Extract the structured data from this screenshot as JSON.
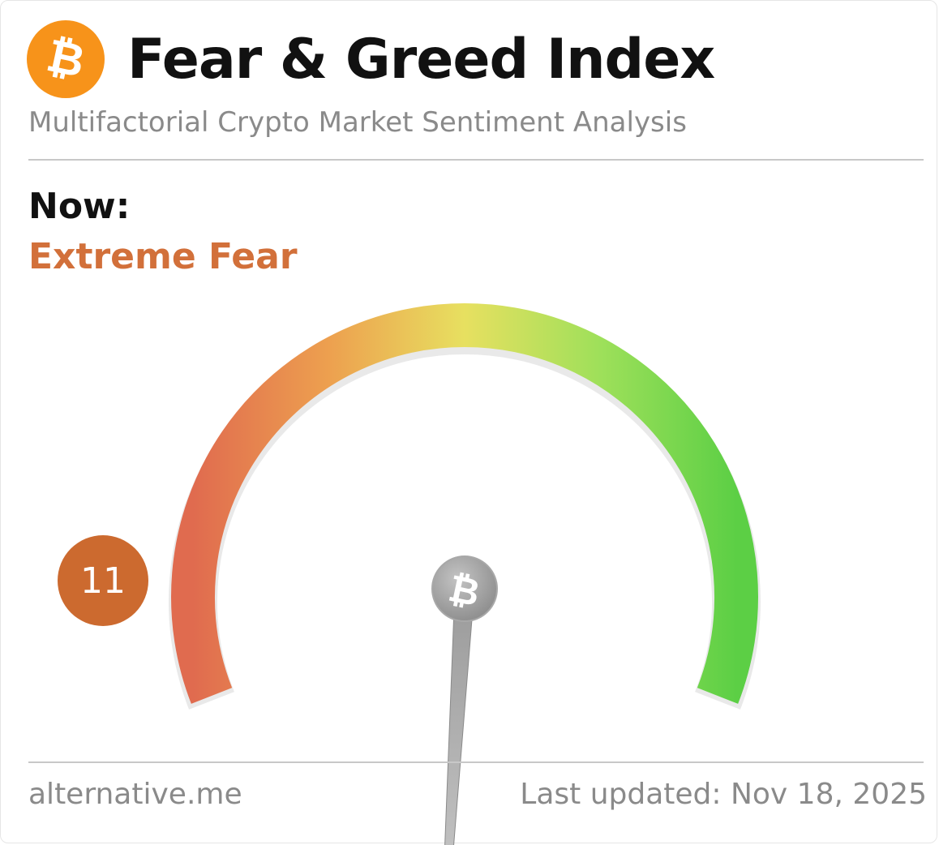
{
  "header": {
    "title": "Fear & Greed Index",
    "subtitle": "Multifactorial Crypto Market Sentiment Analysis",
    "logo_icon": "bitcoin-icon",
    "logo_color": "#f7931a"
  },
  "status": {
    "now_label": "Now:",
    "classification": "Extreme Fear",
    "classification_color": "#d2703a"
  },
  "gauge": {
    "value": 11,
    "value_text": "11",
    "min": 0,
    "max": 100,
    "badge_color": "#cc6a2f",
    "gradient_colors": [
      "#e06b4f",
      "#eda04f",
      "#e7e060",
      "#9ee05a",
      "#5ccf45"
    ],
    "hub_icon": "bitcoin-icon"
  },
  "footer": {
    "source": "alternative.me",
    "last_updated": "Last updated: Nov 18, 2025"
  }
}
